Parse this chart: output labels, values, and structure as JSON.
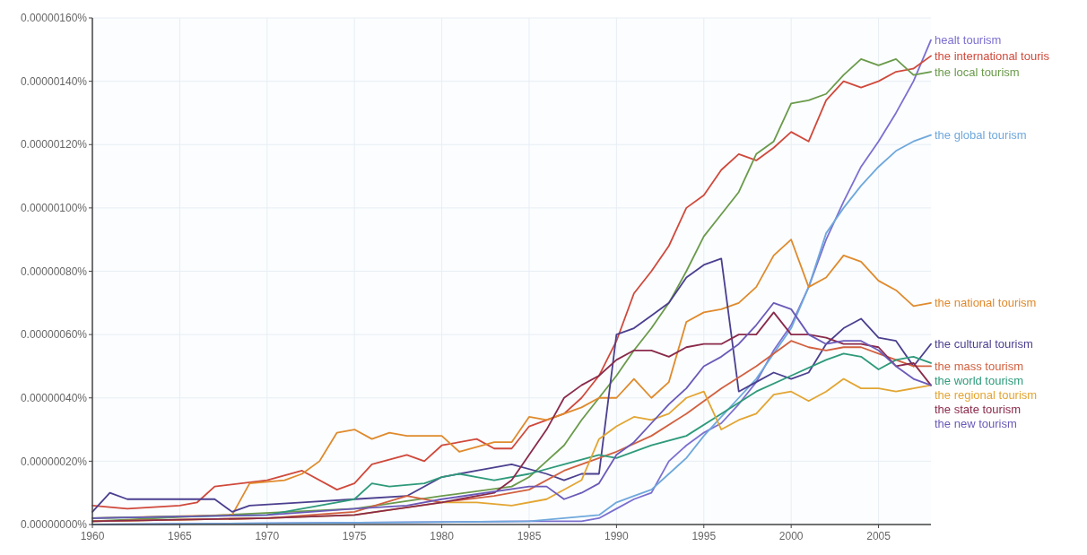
{
  "chart_data": {
    "type": "line",
    "xlim": [
      1960,
      2008
    ],
    "xticks": [
      1960,
      1965,
      1970,
      1975,
      1980,
      1985,
      1990,
      1995,
      2000,
      2005
    ],
    "ylim": [
      0,
      1.6e-06
    ],
    "yticks": [
      {
        "value": 0,
        "label": "0.00000000%"
      },
      {
        "value": 2e-07,
        "label": "0.00000020%"
      },
      {
        "value": 4e-07,
        "label": "0.00000040%"
      },
      {
        "value": 6e-07,
        "label": "0.00000060%"
      },
      {
        "value": 8e-07,
        "label": "0.00000080%"
      },
      {
        "value": 1e-06,
        "label": "0.00000100%"
      },
      {
        "value": 1.2e-06,
        "label": "0.00000120%"
      },
      {
        "value": 1.4e-06,
        "label": "0.00000140%"
      },
      {
        "value": 1.6e-06,
        "label": "0.00000160%"
      }
    ],
    "grid": true,
    "series": [
      {
        "name": "healt tourism",
        "color": "#7b6fd0",
        "x": [
          1960,
          1985,
          1988,
          1989,
          1990,
          1991,
          1992,
          1993,
          1994,
          1995,
          1996,
          1997,
          1998,
          1999,
          2000,
          2001,
          2002,
          2003,
          2004,
          2005,
          2006,
          2007,
          2008
        ],
        "values": [
          0,
          1e-08,
          1e-08,
          2e-08,
          5e-08,
          8e-08,
          1e-07,
          2e-07,
          2.5e-07,
          2.9e-07,
          3.2e-07,
          3.8e-07,
          4.5e-07,
          5.5e-07,
          6.3e-07,
          7.5e-07,
          9e-07,
          1.02e-06,
          1.13e-06,
          1.21e-06,
          1.3e-06,
          1.4e-06,
          1.53e-06
        ]
      },
      {
        "name": "the international touris",
        "color": "#d0493b",
        "x": [
          1960,
          1962,
          1965,
          1966,
          1967,
          1970,
          1972,
          1974,
          1975,
          1976,
          1978,
          1979,
          1980,
          1982,
          1983,
          1984,
          1985,
          1987,
          1988,
          1989,
          1990,
          1991,
          1992,
          1993,
          1994,
          1995,
          1996,
          1997,
          1998,
          1999,
          2000,
          2001,
          2002,
          2003,
          2004,
          2005,
          2006,
          2007,
          2008
        ],
        "values": [
          6e-08,
          5e-08,
          6e-08,
          7e-08,
          1.2e-07,
          1.4e-07,
          1.7e-07,
          1.1e-07,
          1.3e-07,
          1.9e-07,
          2.2e-07,
          2e-07,
          2.5e-07,
          2.7e-07,
          2.4e-07,
          2.4e-07,
          3.1e-07,
          3.5e-07,
          4e-07,
          4.7e-07,
          5.8e-07,
          7.3e-07,
          8e-07,
          8.8e-07,
          1e-06,
          1.04e-06,
          1.12e-06,
          1.17e-06,
          1.15e-06,
          1.19e-06,
          1.24e-06,
          1.21e-06,
          1.34e-06,
          1.4e-06,
          1.38e-06,
          1.4e-06,
          1.43e-06,
          1.44e-06,
          1.48e-06
        ]
      },
      {
        "name": "the local tourism",
        "color": "#6a9a4a",
        "x": [
          1960,
          1975,
          1980,
          1984,
          1985,
          1986,
          1987,
          1988,
          1989,
          1990,
          1991,
          1992,
          1993,
          1994,
          1995,
          1996,
          1997,
          1998,
          1999,
          2000,
          2001,
          2002,
          2003,
          2004,
          2005,
          2006,
          2007,
          2008
        ],
        "values": [
          1e-08,
          5e-08,
          9e-08,
          1.2e-07,
          1.5e-07,
          2e-07,
          2.5e-07,
          3.3e-07,
          4e-07,
          4.7e-07,
          5.5e-07,
          6.2e-07,
          7e-07,
          8e-07,
          9.1e-07,
          9.8e-07,
          1.05e-06,
          1.17e-06,
          1.21e-06,
          1.33e-06,
          1.34e-06,
          1.36e-06,
          1.42e-06,
          1.47e-06,
          1.45e-06,
          1.47e-06,
          1.42e-06,
          1.43e-06
        ]
      },
      {
        "name": "the global tourism",
        "color": "#6fa8dc",
        "x": [
          1960,
          1985,
          1987,
          1989,
          1990,
          1991,
          1992,
          1993,
          1994,
          1995,
          1996,
          1997,
          1998,
          1999,
          2000,
          2001,
          2002,
          2003,
          2004,
          2005,
          2006,
          2007,
          2008
        ],
        "values": [
          0,
          1e-08,
          2e-08,
          3e-08,
          7e-08,
          9e-08,
          1.1e-07,
          1.6e-07,
          2.1e-07,
          2.8e-07,
          3.4e-07,
          4e-07,
          4.6e-07,
          5.4e-07,
          6.2e-07,
          7.5e-07,
          9.2e-07,
          1e-06,
          1.07e-06,
          1.13e-06,
          1.18e-06,
          1.21e-06,
          1.23e-06
        ]
      },
      {
        "name": "the national tourism",
        "color": "#e08a2c",
        "x": [
          1960,
          1968,
          1969,
          1971,
          1972,
          1973,
          1974,
          1975,
          1976,
          1977,
          1978,
          1980,
          1981,
          1983,
          1984,
          1985,
          1986,
          1988,
          1989,
          1990,
          1991,
          1992,
          1993,
          1994,
          1995,
          1996,
          1997,
          1998,
          1999,
          2000,
          2001,
          2002,
          2003,
          2004,
          2005,
          2006,
          2007,
          2008
        ],
        "values": [
          2e-08,
          3e-08,
          1.3e-07,
          1.4e-07,
          1.6e-07,
          2e-07,
          2.9e-07,
          3e-07,
          2.7e-07,
          2.9e-07,
          2.8e-07,
          2.8e-07,
          2.3e-07,
          2.6e-07,
          2.6e-07,
          3.4e-07,
          3.3e-07,
          3.7e-07,
          4e-07,
          4e-07,
          4.6e-07,
          4e-07,
          4.5e-07,
          6.4e-07,
          6.7e-07,
          6.8e-07,
          7e-07,
          7.5e-07,
          8.5e-07,
          9e-07,
          7.5e-07,
          7.8e-07,
          8.5e-07,
          8.3e-07,
          7.7e-07,
          7.4e-07,
          6.9e-07,
          7e-07
        ]
      },
      {
        "name": "the cultural tourism",
        "color": "#4b3f8f",
        "x": [
          1960,
          1961,
          1962,
          1965,
          1967,
          1968,
          1969,
          1972,
          1975,
          1978,
          1980,
          1982,
          1984,
          1986,
          1987,
          1988,
          1989,
          1990,
          1991,
          1992,
          1993,
          1994,
          1995,
          1996,
          1997,
          1998,
          1999,
          2000,
          2001,
          2002,
          2003,
          2004,
          2005,
          2006,
          2007,
          2008
        ],
        "values": [
          4e-08,
          1e-07,
          8e-08,
          8e-08,
          8e-08,
          4e-08,
          6e-08,
          7e-08,
          8e-08,
          9e-08,
          1.5e-07,
          1.7e-07,
          1.9e-07,
          1.6e-07,
          1.4e-07,
          1.6e-07,
          1.6e-07,
          6e-07,
          6.2e-07,
          6.6e-07,
          7e-07,
          7.8e-07,
          8.2e-07,
          8.4e-07,
          4.2e-07,
          4.5e-07,
          4.8e-07,
          4.6e-07,
          4.8e-07,
          5.7e-07,
          6.2e-07,
          6.5e-07,
          5.9e-07,
          5.8e-07,
          5e-07,
          5.7e-07
        ]
      },
      {
        "name": "the mass tourism",
        "color": "#d2603f",
        "x": [
          1960,
          1970,
          1975,
          1978,
          1980,
          1983,
          1985,
          1987,
          1988,
          1989,
          1990,
          1992,
          1994,
          1996,
          1998,
          2000,
          2001,
          2002,
          2003,
          2004,
          2005,
          2006,
          2007,
          2008
        ],
        "values": [
          1e-08,
          2e-08,
          4e-08,
          9e-08,
          7e-08,
          9e-08,
          1.1e-07,
          1.7e-07,
          1.9e-07,
          2.1e-07,
          2.3e-07,
          2.8e-07,
          3.5e-07,
          4.3e-07,
          5e-07,
          5.8e-07,
          5.6e-07,
          5.5e-07,
          5.6e-07,
          5.6e-07,
          5.4e-07,
          5.2e-07,
          5e-07,
          5e-07
        ]
      },
      {
        "name": "the world tourism",
        "color": "#2e9a7a",
        "x": [
          1960,
          1970,
          1974,
          1975,
          1976,
          1977,
          1979,
          1980,
          1981,
          1982,
          1983,
          1985,
          1987,
          1989,
          1990,
          1992,
          1994,
          1996,
          1998,
          2000,
          2002,
          2003,
          2004,
          2005,
          2006,
          2007,
          2008
        ],
        "values": [
          2e-08,
          3e-08,
          7e-08,
          8e-08,
          1.3e-07,
          1.2e-07,
          1.3e-07,
          1.5e-07,
          1.6e-07,
          1.5e-07,
          1.4e-07,
          1.6e-07,
          1.9e-07,
          2.2e-07,
          2.1e-07,
          2.5e-07,
          2.8e-07,
          3.5e-07,
          4.2e-07,
          4.7e-07,
          5.2e-07,
          5.4e-07,
          5.3e-07,
          4.9e-07,
          5.2e-07,
          5.3e-07,
          5.1e-07
        ]
      },
      {
        "name": "the regional tourism",
        "color": "#e3a532",
        "x": [
          1960,
          1970,
          1975,
          1980,
          1982,
          1984,
          1986,
          1988,
          1989,
          1990,
          1991,
          1992,
          1993,
          1994,
          1995,
          1996,
          1997,
          1998,
          1999,
          2000,
          2001,
          2002,
          2003,
          2004,
          2005,
          2006,
          2007,
          2008
        ],
        "values": [
          1e-08,
          2e-08,
          3e-08,
          7e-08,
          7e-08,
          6e-08,
          8e-08,
          1.4e-07,
          2.7e-07,
          3.1e-07,
          3.4e-07,
          3.3e-07,
          3.5e-07,
          4e-07,
          4.2e-07,
          3e-07,
          3.3e-07,
          3.5e-07,
          4.1e-07,
          4.2e-07,
          3.9e-07,
          4.2e-07,
          4.6e-07,
          4.3e-07,
          4.3e-07,
          4.2e-07,
          4.3e-07,
          4.4e-07
        ]
      },
      {
        "name": "the state tourism",
        "color": "#8a2a4a",
        "x": [
          1960,
          1970,
          1975,
          1980,
          1983,
          1984,
          1985,
          1986,
          1987,
          1988,
          1989,
          1990,
          1991,
          1992,
          1993,
          1994,
          1995,
          1996,
          1997,
          1998,
          1999,
          2000,
          2001,
          2002,
          2003,
          2004,
          2005,
          2006,
          2007,
          2008
        ],
        "values": [
          1e-08,
          2e-08,
          3e-08,
          7e-08,
          1e-07,
          1.4e-07,
          2.2e-07,
          3e-07,
          4e-07,
          4.4e-07,
          4.7e-07,
          5.2e-07,
          5.5e-07,
          5.5e-07,
          5.3e-07,
          5.6e-07,
          5.7e-07,
          5.7e-07,
          6e-07,
          6e-07,
          6.7e-07,
          6e-07,
          6e-07,
          5.9e-07,
          5.7e-07,
          5.7e-07,
          5.6e-07,
          5e-07,
          5.1e-07,
          4.4e-07
        ]
      },
      {
        "name": "the new tourism",
        "color": "#6a5ab8",
        "x": [
          1960,
          1970,
          1975,
          1978,
          1980,
          1985,
          1986,
          1987,
          1988,
          1989,
          1990,
          1991,
          1992,
          1993,
          1994,
          1995,
          1996,
          1997,
          1998,
          1999,
          2000,
          2001,
          2002,
          2003,
          2004,
          2005,
          2006,
          2007,
          2008
        ],
        "values": [
          2e-08,
          3e-08,
          5e-08,
          6e-08,
          8e-08,
          1.2e-07,
          1.2e-07,
          8e-08,
          1e-07,
          1.3e-07,
          2.2e-07,
          2.6e-07,
          3.2e-07,
          3.8e-07,
          4.3e-07,
          5e-07,
          5.3e-07,
          5.7e-07,
          6.3e-07,
          7e-07,
          6.8e-07,
          6e-07,
          5.7e-07,
          5.8e-07,
          5.8e-07,
          5.5e-07,
          5e-07,
          4.6e-07,
          4.4e-07
        ]
      }
    ]
  }
}
